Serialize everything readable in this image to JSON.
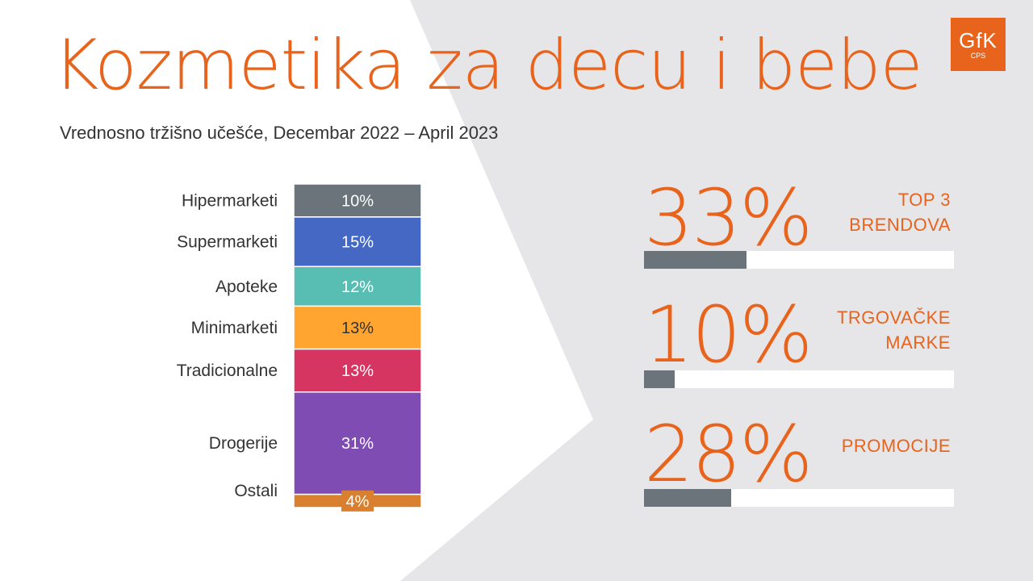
{
  "title": "Kozmetika za decu i bebe",
  "subtitle": "Vrednosno tržišno učešće, Decembar 2022 – April 2023",
  "logo": {
    "mark": "GfK",
    "sub": "CPS"
  },
  "colors": {
    "accent": "#e8631c",
    "background_panel": "#e6e6e9",
    "kpi_bar": "#6a747a",
    "kpi_track": "#ffffff"
  },
  "chart_data": {
    "type": "bar",
    "orientation": "stacked-single-column",
    "title": "Vrednosno tržišno učešće, Decembar 2022 – April 2023",
    "unit": "%",
    "categories": [
      "Hipermarketi",
      "Supermarketi",
      "Apoteke",
      "Minimarketi",
      "Tradicionalne",
      "Drogerije",
      "Ostali"
    ],
    "values": [
      10,
      15,
      12,
      13,
      13,
      31,
      4
    ],
    "labels": [
      "10%",
      "15%",
      "12%",
      "13%",
      "13%",
      "31%",
      "4%"
    ],
    "colors": [
      "#6a747a",
      "#4468c4",
      "#58bdb3",
      "#ffa530",
      "#d63461",
      "#7f4cb4",
      "#d87f30"
    ],
    "label_colors": [
      "#ffffff",
      "#ffffff",
      "#ffffff",
      "#333333",
      "#ffffff",
      "#ffffff",
      "#ffffff"
    ]
  },
  "kpis": [
    {
      "value": "33%",
      "label": [
        "TOP 3",
        "BRENDOVA"
      ],
      "fraction": 0.33
    },
    {
      "value": "10%",
      "label": [
        "TRGOVAČKE",
        "MARKE"
      ],
      "fraction": 0.1
    },
    {
      "value": "28%",
      "label": [
        "PROMOCIJE"
      ],
      "fraction": 0.28
    }
  ]
}
